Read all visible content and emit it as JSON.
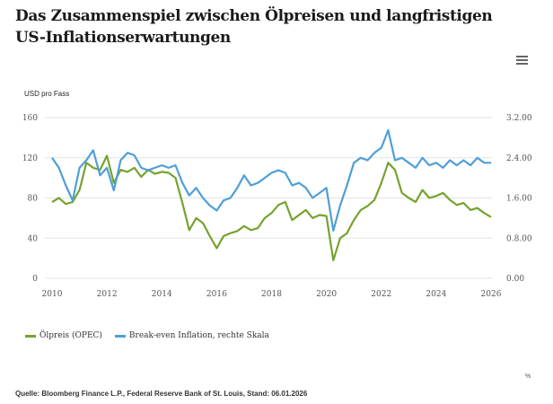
{
  "title": "Das Zusammenspiel zwischen Ölpreisen und langfristigen US-Inflationserwartungen",
  "menu_icon": "hamburger-menu-icon",
  "unit_label": "USD pro Fass",
  "percent_label": "%",
  "source": "Quelle:  Bloomberg Finance L.P., Federal Reserve Bank of St. Louis, Stand: 06.01.2026",
  "legend": [
    {
      "label": "Ölpreis (OPEC)",
      "color": "#76a22e"
    },
    {
      "label": "Break-even Inflation, rechte Skala",
      "color": "#4f9fd6"
    }
  ],
  "chart_data": {
    "type": "line",
    "title": "Das Zusammenspiel zwischen Ölpreisen und langfristigen US-Inflationserwartungen",
    "xlabel": "",
    "ylabel": "USD pro Fass",
    "y2label": "%",
    "xlim": [
      2010,
      2026
    ],
    "ylim": [
      0,
      160
    ],
    "y2lim": [
      0,
      3.2
    ],
    "x_ticks": [
      "2010",
      "2012",
      "2014",
      "2016",
      "2018",
      "2020",
      "2022",
      "2024",
      "2026"
    ],
    "y_ticks": [
      "0",
      "40",
      "80",
      "120",
      "160"
    ],
    "y2_ticks": [
      "0.00",
      "0.8.00",
      "1.6.00",
      "2.4.00",
      "3.2.00"
    ],
    "grid": true,
    "legend_position": "bottom-left",
    "x": [
      2010.0,
      2010.25,
      2010.5,
      2010.75,
      2011.0,
      2011.25,
      2011.5,
      2011.75,
      2012.0,
      2012.25,
      2012.5,
      2012.75,
      2013.0,
      2013.25,
      2013.5,
      2013.75,
      2014.0,
      2014.25,
      2014.5,
      2014.75,
      2015.0,
      2015.25,
      2015.5,
      2015.75,
      2016.0,
      2016.25,
      2016.5,
      2016.75,
      2017.0,
      2017.25,
      2017.5,
      2017.75,
      2018.0,
      2018.25,
      2018.5,
      2018.75,
      2019.0,
      2019.25,
      2019.5,
      2019.75,
      2020.0,
      2020.25,
      2020.5,
      2020.75,
      2021.0,
      2021.25,
      2021.5,
      2021.75,
      2022.0,
      2022.25,
      2022.5,
      2022.75,
      2023.0,
      2023.25,
      2023.5,
      2023.75,
      2024.0,
      2024.25,
      2024.5,
      2024.75,
      2025.0,
      2025.25,
      2025.5,
      2025.75,
      2026.0
    ],
    "series": [
      {
        "name": "Ölpreis (OPEC)",
        "axis": "left",
        "color": "#76a22e",
        "values": [
          76,
          80,
          74,
          76,
          88,
          115,
          110,
          108,
          122,
          95,
          108,
          106,
          110,
          101,
          108,
          104,
          106,
          105,
          100,
          75,
          48,
          60,
          55,
          42,
          30,
          42,
          45,
          47,
          52,
          48,
          50,
          60,
          65,
          73,
          76,
          58,
          63,
          68,
          60,
          63,
          62,
          18,
          40,
          45,
          58,
          68,
          72,
          78,
          95,
          115,
          108,
          85,
          80,
          76,
          88,
          80,
          82,
          85,
          78,
          73,
          75,
          68,
          70,
          65,
          61
        ]
      },
      {
        "name": "Break-even Inflation, rechte Skala",
        "axis": "right",
        "color": "#4f9fd6",
        "values": [
          2.4,
          2.2,
          1.85,
          1.55,
          2.2,
          2.35,
          2.55,
          2.05,
          2.2,
          1.75,
          2.35,
          2.5,
          2.45,
          2.2,
          2.15,
          2.2,
          2.25,
          2.2,
          2.25,
          1.9,
          1.65,
          1.8,
          1.6,
          1.45,
          1.35,
          1.55,
          1.6,
          1.8,
          2.05,
          1.85,
          1.9,
          2.0,
          2.1,
          2.15,
          2.1,
          1.85,
          1.9,
          1.8,
          1.6,
          1.7,
          1.8,
          0.95,
          1.45,
          1.85,
          2.3,
          2.4,
          2.35,
          2.5,
          2.6,
          2.95,
          2.35,
          2.4,
          2.3,
          2.2,
          2.4,
          2.25,
          2.3,
          2.2,
          2.35,
          2.25,
          2.35,
          2.25,
          2.4,
          2.3,
          2.3
        ]
      }
    ]
  }
}
